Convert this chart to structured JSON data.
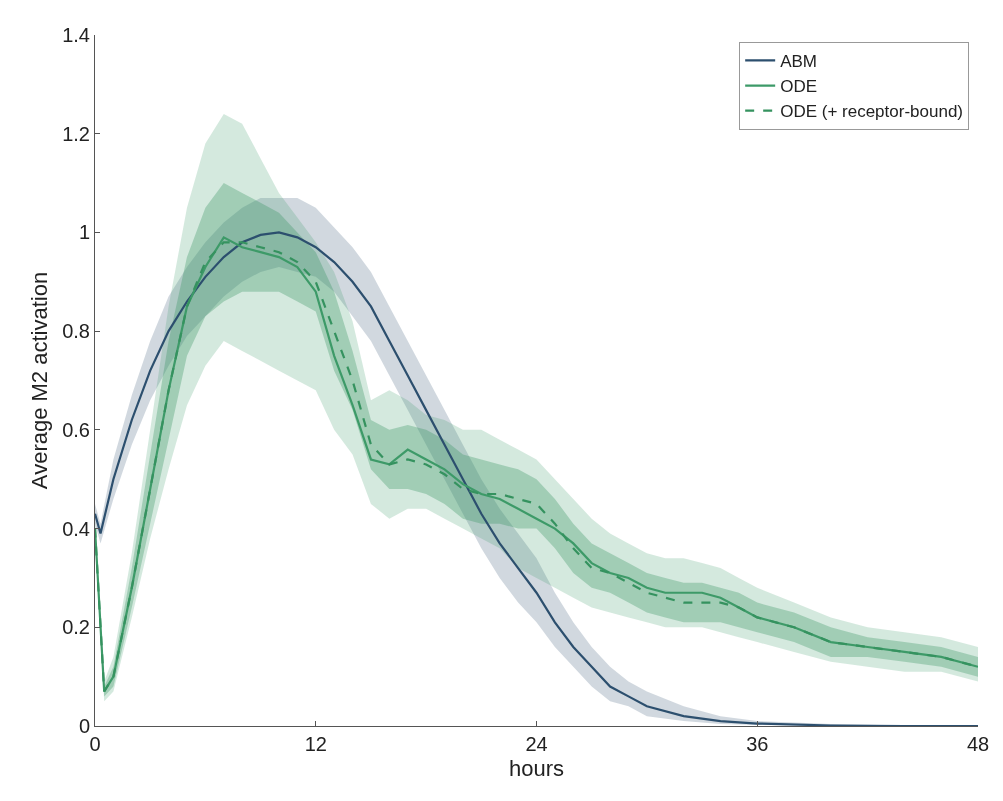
{
  "chart_data": {
    "type": "line",
    "xlabel": "hours",
    "ylabel": "Average M2 activation",
    "xlim": [
      0,
      48
    ],
    "xticks": [
      0,
      12,
      24,
      36,
      48
    ],
    "ylim": [
      0,
      1.4
    ],
    "yticks": [
      0,
      0.2,
      0.4,
      0.6,
      0.8,
      1,
      1.2,
      1.4
    ],
    "legend": "top right",
    "marker": "none",
    "series": [
      {
        "name": "ABM",
        "color": "#2c4f6e",
        "line_style": "solid",
        "x": [
          0,
          0.3,
          1,
          2,
          3,
          4,
          5,
          6,
          7,
          8,
          9,
          10,
          11,
          12,
          13,
          14,
          15,
          16,
          17,
          18,
          19,
          20,
          21,
          22,
          23,
          24,
          25,
          26,
          27,
          28,
          29,
          30,
          32,
          34,
          36,
          40,
          44,
          48
        ],
        "values": [
          0.43,
          0.39,
          0.5,
          0.62,
          0.72,
          0.8,
          0.86,
          0.91,
          0.95,
          0.98,
          0.995,
          1.0,
          0.99,
          0.97,
          0.94,
          0.9,
          0.85,
          0.78,
          0.71,
          0.64,
          0.57,
          0.5,
          0.43,
          0.37,
          0.32,
          0.27,
          0.21,
          0.16,
          0.12,
          0.08,
          0.06,
          0.04,
          0.02,
          0.01,
          0.005,
          0.001,
          0,
          0
        ],
        "lower": [
          0.41,
          0.37,
          0.46,
          0.57,
          0.66,
          0.73,
          0.79,
          0.83,
          0.87,
          0.9,
          0.92,
          0.93,
          0.92,
          0.91,
          0.88,
          0.83,
          0.78,
          0.71,
          0.64,
          0.57,
          0.5,
          0.43,
          0.36,
          0.3,
          0.25,
          0.21,
          0.16,
          0.12,
          0.08,
          0.05,
          0.04,
          0.02,
          0.01,
          0.004,
          0.002,
          0,
          0,
          0
        ],
        "upper": [
          0.45,
          0.41,
          0.54,
          0.67,
          0.78,
          0.87,
          0.93,
          0.98,
          1.02,
          1.05,
          1.07,
          1.07,
          1.07,
          1.05,
          1.01,
          0.97,
          0.92,
          0.85,
          0.78,
          0.71,
          0.64,
          0.57,
          0.5,
          0.44,
          0.39,
          0.34,
          0.27,
          0.21,
          0.16,
          0.12,
          0.09,
          0.07,
          0.04,
          0.02,
          0.01,
          0.004,
          0.001,
          0.001
        ]
      },
      {
        "name": "ODE",
        "color": "#3d9a68",
        "line_style": "solid",
        "x": [
          0,
          0.5,
          1,
          2,
          3,
          4,
          5,
          6,
          7,
          8,
          9,
          10,
          11,
          12,
          13,
          14,
          15,
          16,
          17,
          18,
          19,
          20,
          21,
          22,
          23,
          24,
          25,
          26,
          27,
          28,
          29,
          30,
          31,
          32,
          33,
          34,
          35,
          36,
          38,
          40,
          42,
          44,
          46,
          48
        ],
        "values": [
          0.4,
          0.07,
          0.1,
          0.28,
          0.48,
          0.68,
          0.85,
          0.93,
          0.99,
          0.97,
          0.96,
          0.95,
          0.93,
          0.88,
          0.75,
          0.65,
          0.54,
          0.53,
          0.56,
          0.54,
          0.52,
          0.49,
          0.47,
          0.46,
          0.44,
          0.42,
          0.4,
          0.37,
          0.33,
          0.31,
          0.3,
          0.28,
          0.27,
          0.27,
          0.27,
          0.26,
          0.24,
          0.22,
          0.2,
          0.17,
          0.16,
          0.15,
          0.14,
          0.12
        ],
        "lower": [
          0.38,
          0.05,
          0.07,
          0.22,
          0.38,
          0.52,
          0.65,
          0.73,
          0.78,
          0.76,
          0.74,
          0.72,
          0.7,
          0.68,
          0.6,
          0.55,
          0.45,
          0.42,
          0.44,
          0.44,
          0.42,
          0.4,
          0.38,
          0.36,
          0.32,
          0.3,
          0.28,
          0.26,
          0.24,
          0.23,
          0.22,
          0.21,
          0.2,
          0.2,
          0.2,
          0.19,
          0.18,
          0.17,
          0.15,
          0.13,
          0.12,
          0.11,
          0.11,
          0.09
        ],
        "upper": [
          0.42,
          0.09,
          0.14,
          0.35,
          0.6,
          0.85,
          1.05,
          1.18,
          1.24,
          1.22,
          1.15,
          1.08,
          1.03,
          0.98,
          0.92,
          0.82,
          0.66,
          0.68,
          0.66,
          0.63,
          0.62,
          0.6,
          0.6,
          0.58,
          0.56,
          0.54,
          0.5,
          0.46,
          0.42,
          0.39,
          0.37,
          0.35,
          0.34,
          0.34,
          0.33,
          0.32,
          0.3,
          0.28,
          0.25,
          0.22,
          0.2,
          0.19,
          0.18,
          0.16
        ]
      },
      {
        "name": "ODE (+ receptor-bound)",
        "color": "#35925f",
        "line_style": "dashed",
        "x": [
          0,
          0.5,
          1,
          2,
          3,
          4,
          5,
          6,
          7,
          8,
          9,
          10,
          11,
          12,
          13,
          14,
          15,
          16,
          17,
          18,
          19,
          20,
          21,
          22,
          23,
          24,
          25,
          26,
          27,
          28,
          29,
          30,
          31,
          32,
          33,
          34,
          35,
          36,
          38,
          40,
          42,
          44,
          46,
          48
        ],
        "values": [
          0.4,
          0.07,
          0.1,
          0.28,
          0.48,
          0.68,
          0.85,
          0.94,
          0.98,
          0.98,
          0.97,
          0.96,
          0.94,
          0.9,
          0.8,
          0.7,
          0.57,
          0.53,
          0.54,
          0.53,
          0.51,
          0.48,
          0.47,
          0.47,
          0.46,
          0.45,
          0.41,
          0.36,
          0.32,
          0.31,
          0.29,
          0.27,
          0.26,
          0.25,
          0.25,
          0.25,
          0.24,
          0.22,
          0.2,
          0.17,
          0.16,
          0.15,
          0.14,
          0.12
        ],
        "lower": [
          0.39,
          0.06,
          0.08,
          0.24,
          0.41,
          0.58,
          0.75,
          0.83,
          0.86,
          0.88,
          0.88,
          0.88,
          0.86,
          0.84,
          0.72,
          0.64,
          0.52,
          0.48,
          0.48,
          0.47,
          0.45,
          0.42,
          0.41,
          0.41,
          0.4,
          0.4,
          0.36,
          0.31,
          0.28,
          0.27,
          0.25,
          0.23,
          0.22,
          0.21,
          0.21,
          0.21,
          0.2,
          0.19,
          0.17,
          0.14,
          0.14,
          0.13,
          0.12,
          0.1
        ],
        "upper": [
          0.41,
          0.08,
          0.12,
          0.32,
          0.55,
          0.78,
          0.95,
          1.05,
          1.1,
          1.08,
          1.06,
          1.04,
          1.0,
          0.96,
          0.88,
          0.76,
          0.62,
          0.6,
          0.61,
          0.6,
          0.58,
          0.55,
          0.54,
          0.53,
          0.52,
          0.5,
          0.46,
          0.41,
          0.37,
          0.35,
          0.33,
          0.31,
          0.3,
          0.29,
          0.29,
          0.28,
          0.27,
          0.25,
          0.23,
          0.2,
          0.18,
          0.17,
          0.16,
          0.14
        ]
      }
    ]
  }
}
